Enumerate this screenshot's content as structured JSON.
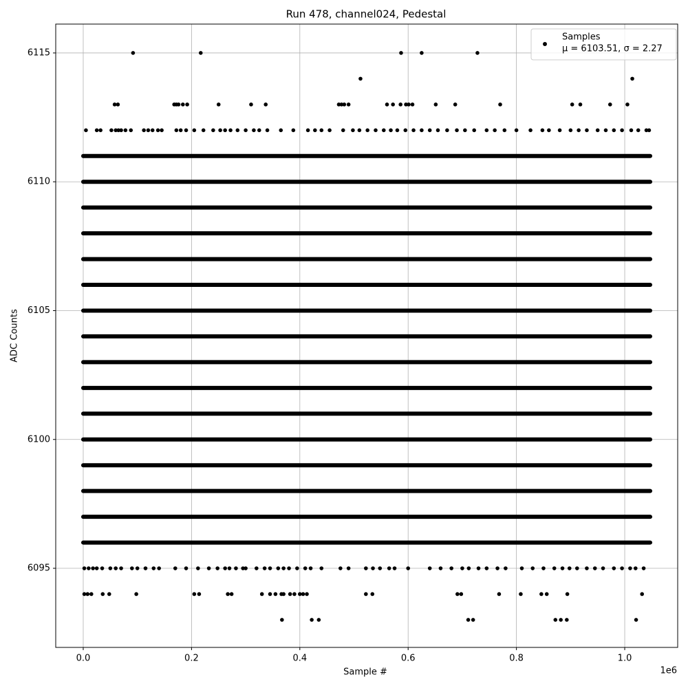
{
  "chart_data": {
    "type": "scatter",
    "title": "Run 478, channel024, Pedestal",
    "xlabel": "Sample #",
    "ylabel": "ADC Counts",
    "x_offset_label": "1e6",
    "xlim": [
      -50800,
      1097800
    ],
    "ylim": [
      6091.93,
      6116.12
    ],
    "xticks": [
      {
        "value": 0,
        "label": "0.0"
      },
      {
        "value": 200000,
        "label": "0.2"
      },
      {
        "value": 400000,
        "label": "0.4"
      },
      {
        "value": 600000,
        "label": "0.6"
      },
      {
        "value": 800000,
        "label": "0.8"
      },
      {
        "value": 1000000,
        "label": "1.0"
      }
    ],
    "yticks": [
      6095,
      6100,
      6105,
      6110,
      6115
    ],
    "grid": true,
    "legend": "upper right",
    "series": [
      {
        "name": "Samples",
        "stats": "μ = 6103.51, σ = 2.27",
        "color": "#000000",
        "rows": [
          {
            "y": 6115,
            "x": [
              92000,
              217000,
              587000,
              625000,
              728000
            ]
          },
          {
            "y": 6114,
            "x": [
              512000,
              1014000
            ]
          },
          {
            "y": 6113,
            "x": [
              58000,
              64000,
              168000,
              172000,
              176000,
              184000,
              192000,
              250000,
              310000,
              337000,
              472000,
              477000,
              482000,
              490000,
              561000,
              572000,
              586000,
              596000,
              601000,
              608000,
              651000,
              687000,
              770000,
              903000,
              918000,
              973000,
              1005000
            ]
          },
          {
            "y": 6112,
            "x": [
              5000,
              25000,
              32000,
              52000,
              60000,
              65000,
              70000,
              78000,
              88000,
              112000,
              120000,
              128000,
              138000,
              145000,
              172000,
              180000,
              190000,
              205000,
              222000,
              240000,
              253000,
              262000,
              272000,
              285000,
              300000,
              315000,
              325000,
              340000,
              365000,
              388000,
              415000,
              428000,
              440000,
              455000,
              480000,
              498000,
              510000,
              525000,
              540000,
              555000,
              568000,
              580000,
              595000,
              610000,
              625000,
              640000,
              655000,
              672000,
              690000,
              705000,
              722000,
              745000,
              760000,
              778000,
              800000,
              826000,
              848000,
              860000,
              880000,
              900000,
              915000,
              930000,
              950000,
              965000,
              980000,
              995000,
              1012000,
              1025000,
              1040000,
              1045000
            ]
          },
          {
            "y": 6111,
            "dense": true,
            "x": [
              0,
              1047000
            ]
          },
          {
            "y": 6110,
            "dense": true,
            "x": [
              0,
              1047000
            ]
          },
          {
            "y": 6109,
            "dense": true,
            "x": [
              0,
              1047000
            ]
          },
          {
            "y": 6108,
            "dense": true,
            "x": [
              0,
              1047000
            ]
          },
          {
            "y": 6107,
            "dense": true,
            "x": [
              0,
              1047000
            ]
          },
          {
            "y": 6106,
            "dense": true,
            "x": [
              0,
              1047000
            ]
          },
          {
            "y": 6105,
            "dense": true,
            "x": [
              0,
              1047000
            ]
          },
          {
            "y": 6104,
            "dense": true,
            "x": [
              0,
              1047000
            ]
          },
          {
            "y": 6103,
            "dense": true,
            "x": [
              0,
              1047000
            ]
          },
          {
            "y": 6102,
            "dense": true,
            "x": [
              0,
              1047000
            ]
          },
          {
            "y": 6101,
            "dense": true,
            "x": [
              0,
              1047000
            ]
          },
          {
            "y": 6100,
            "dense": true,
            "x": [
              0,
              1047000
            ]
          },
          {
            "y": 6099,
            "dense": true,
            "x": [
              0,
              1047000
            ]
          },
          {
            "y": 6098,
            "dense": true,
            "x": [
              0,
              1047000
            ]
          },
          {
            "y": 6097,
            "dense": true,
            "x": [
              0,
              1047000
            ]
          },
          {
            "y": 6096,
            "dense": true,
            "x": [
              0,
              1047000
            ]
          },
          {
            "y": 6095,
            "x": [
              2000,
              10000,
              18000,
              25000,
              35000,
              50000,
              60000,
              70000,
              90000,
              100000,
              115000,
              130000,
              140000,
              170000,
              190000,
              212000,
              232000,
              248000,
              262000,
              270000,
              282000,
              295000,
              300000,
              320000,
              335000,
              345000,
              360000,
              370000,
              380000,
              395000,
              410000,
              420000,
              440000,
              475000,
              490000,
              522000,
              535000,
              548000,
              565000,
              575000,
              600000,
              640000,
              660000,
              680000,
              700000,
              712000,
              730000,
              745000,
              765000,
              780000,
              810000,
              830000,
              850000,
              870000,
              885000,
              898000,
              912000,
              930000,
              945000,
              960000,
              980000,
              995000,
              1010000,
              1020000,
              1035000
            ]
          },
          {
            "y": 6094,
            "x": [
              2000,
              8000,
              15000,
              36000,
              48000,
              98000,
              205000,
              214000,
              267000,
              274000,
              330000,
              345000,
              355000,
              366000,
              370000,
              382000,
              390000,
              400000,
              406000,
              413000,
              522000,
              534000,
              691000,
              698000,
              768000,
              808000,
              846000,
              856000,
              894000,
              1032000
            ]
          },
          {
            "y": 6093,
            "x": [
              367000,
              422000,
              435000,
              711000,
              720000,
              872000,
              882000,
              893000,
              1021000
            ]
          }
        ]
      }
    ]
  }
}
